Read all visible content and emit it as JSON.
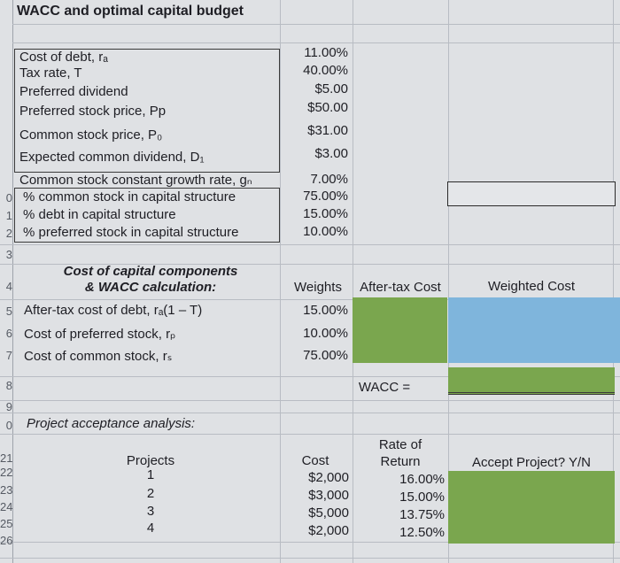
{
  "title": "WACC and optimal capital budget",
  "inputs": [
    {
      "label": "Cost of debt, rₐ",
      "value": "11.00%"
    },
    {
      "label": "Tax rate, T",
      "value": "40.00%"
    },
    {
      "label": "Preferred dividend",
      "value": "$5.00"
    },
    {
      "label": "Preferred stock price, Pp",
      "value": "$50.00"
    },
    {
      "label": "Common stock price, P₀",
      "value": "$31.00"
    },
    {
      "label": "Expected common dividend, D₁",
      "value": "$3.00"
    },
    {
      "label": "Common stock constant growth rate, gₙ",
      "value": "7.00%"
    },
    {
      "label": "% common stock in capital structure",
      "value": "75.00%"
    },
    {
      "label": "% debt in capital structure",
      "value": "15.00%"
    },
    {
      "label": "% preferred stock in capital structure",
      "value": "10.00%"
    }
  ],
  "row_numbers": {
    "r10": "0",
    "r11": "1",
    "r12": "2",
    "r13": "3",
    "r14": "4",
    "r15": "5",
    "r16": "6",
    "r17": "7",
    "r18": "8",
    "r19": "9",
    "r20": "0",
    "r21": "21",
    "r22": "22",
    "r23": "23",
    "r24": "24",
    "r25": "25",
    "r26": "26"
  },
  "components": {
    "heading_line1": "Cost of capital components",
    "heading_line2": "& WACC calculation:",
    "col_weights": "Weights",
    "col_after_tax": "After-tax Cost",
    "col_weighted": "Weighted Cost",
    "rows": [
      {
        "label": "After-tax cost of debt, rₐ(1 – T)",
        "weight": "15.00%"
      },
      {
        "label": "Cost of preferred stock, rₚ",
        "weight": "10.00%"
      },
      {
        "label": "Cost of common stock, rₛ",
        "weight": "75.00%"
      }
    ],
    "wacc_label": "WACC ="
  },
  "projects": {
    "heading": "Project acceptance analysis:",
    "col_projects": "Projects",
    "col_cost": "Cost",
    "col_rate_line1": "Rate of",
    "col_rate_line2": "Return",
    "col_accept": "Accept Project? Y/N",
    "rows": [
      {
        "project": "1",
        "cost": "$2,000",
        "rate": "16.00%"
      },
      {
        "project": "2",
        "cost": "$3,000",
        "rate": "15.00%"
      },
      {
        "project": "3",
        "cost": "$5,000",
        "rate": "13.75%"
      },
      {
        "project": "4",
        "cost": "$2,000",
        "rate": "12.50%"
      }
    ]
  },
  "colors": {
    "sheet_bg": "#dfe1e4",
    "blue_fill": "#7fb5dc",
    "green_fill": "#7aa64e"
  }
}
